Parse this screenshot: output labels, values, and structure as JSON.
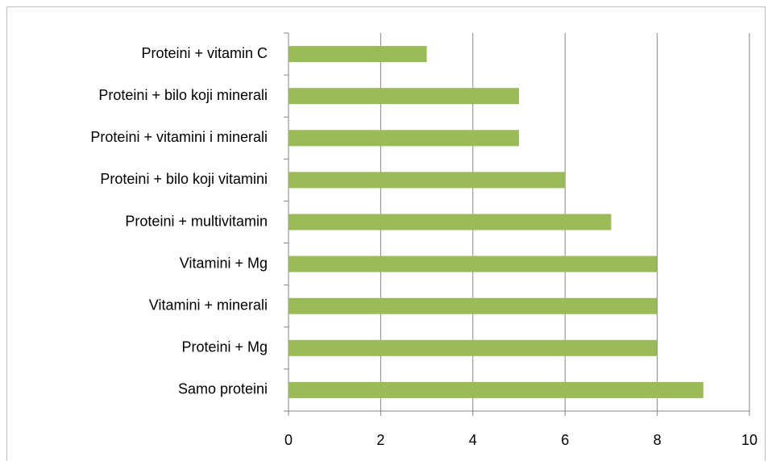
{
  "chart_data": {
    "type": "bar",
    "orientation": "horizontal",
    "categories": [
      "Proteini + vitamin C",
      "Proteini + bilo koji minerali",
      "Proteini + vitamini i minerali",
      "Proteini + bilo koji vitamini",
      "Proteini + multivitamin",
      "Vitamini + Mg",
      "Vitamini + minerali",
      "Proteini + Mg",
      "Samo proteini"
    ],
    "values": [
      3,
      5,
      5,
      6,
      7,
      8,
      8,
      8,
      9
    ],
    "color": "#9bbb59",
    "xlim": [
      0,
      10
    ],
    "xticks": [
      0,
      2,
      4,
      6,
      8,
      10
    ],
    "grid": true
  }
}
